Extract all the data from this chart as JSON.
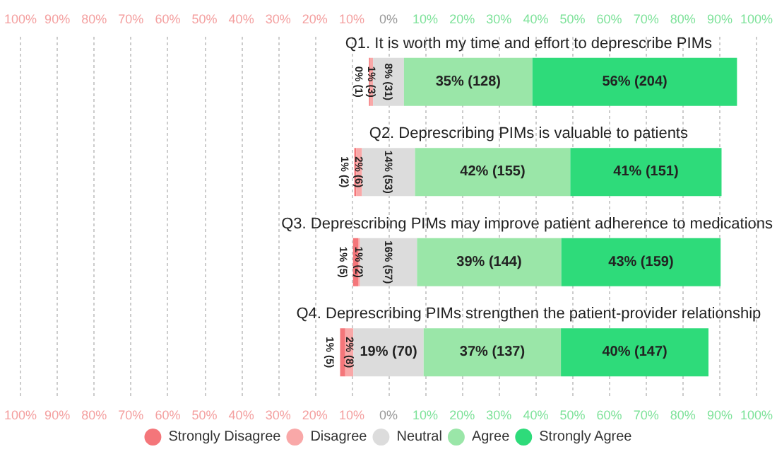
{
  "chart_data": {
    "type": "bar",
    "orientation": "horizontal",
    "categories": [
      "Q1. It is worth my time and effort to deprescribe PIMs",
      "Q2. Deprescribing PIMs is valuable to patients",
      "Q3. Deprescribing PIMs may improve patient adherence to medications",
      "Q4. Deprescribing PIMs strengthen the patient-provider relationship"
    ],
    "series": [
      {
        "name": "Strongly Disagree",
        "color": "#f4767a",
        "values": [
          0.3,
          0.5,
          1.4,
          1.4
        ],
        "base": [
          -5.3,
          -9.3,
          -9.65,
          -13.15
        ],
        "value_labels": [
          "0% (1)",
          "1% (2)",
          "1% (5)",
          "1% (5)"
        ]
      },
      {
        "name": "Disagree",
        "color": "#f9a8a8",
        "values": [
          0.8,
          1.6,
          0.5,
          2.2
        ],
        "base": [
          -5.0,
          -8.8,
          -8.25,
          -11.75
        ],
        "value_labels": [
          "1% (3)",
          "2% (6)",
          "1% (2)",
          "2% (8)"
        ]
      },
      {
        "name": "Neutral",
        "color": "#dcdcdc",
        "values": [
          8.4,
          14.4,
          15.5,
          19.1
        ],
        "base": [
          -4.2,
          -7.2,
          -7.75,
          -9.55
        ],
        "value_labels": [
          "8% (31)",
          "14% (53)",
          "16% (57)",
          "19% (70)"
        ]
      },
      {
        "name": "Agree",
        "color": "#9ae6a8",
        "values": [
          34.9,
          42.2,
          39.2,
          37.3
        ],
        "base": [
          4.2,
          7.2,
          7.75,
          9.55
        ],
        "value_labels": [
          "35% (128)",
          "42% (155)",
          "39% (144)",
          "37% (137)"
        ]
      },
      {
        "name": "Strongly Agree",
        "color": "#2edb7a",
        "values": [
          55.6,
          41.1,
          43.3,
          40.1
        ],
        "base": [
          39.1,
          49.4,
          46.95,
          46.85
        ],
        "value_labels": [
          "56% (204)",
          "41% (151)",
          "43% (159)",
          "40% (147)"
        ]
      }
    ],
    "xlim": [
      -100,
      100
    ],
    "xticks": [
      {
        "value": -100,
        "label": "100%"
      },
      {
        "value": -90,
        "label": "90%"
      },
      {
        "value": -80,
        "label": "80%"
      },
      {
        "value": -70,
        "label": "70%"
      },
      {
        "value": -60,
        "label": "60%"
      },
      {
        "value": -50,
        "label": "50%"
      },
      {
        "value": -40,
        "label": "40%"
      },
      {
        "value": -30,
        "label": "30%"
      },
      {
        "value": -20,
        "label": "20%"
      },
      {
        "value": -10,
        "label": "10%"
      },
      {
        "value": 0,
        "label": "0%"
      },
      {
        "value": 10,
        "label": "10%"
      },
      {
        "value": 20,
        "label": "20%"
      },
      {
        "value": 30,
        "label": "30%"
      },
      {
        "value": 40,
        "label": "40%"
      },
      {
        "value": 50,
        "label": "50%"
      },
      {
        "value": 60,
        "label": "60%"
      },
      {
        "value": 70,
        "label": "70%"
      },
      {
        "value": 80,
        "label": "80%"
      },
      {
        "value": 90,
        "label": "90%"
      },
      {
        "value": 100,
        "label": "100%"
      }
    ],
    "x2lim": [
      -100,
      100
    ],
    "x2ticks": [
      {
        "value": -100,
        "label": "100%"
      },
      {
        "value": -90,
        "label": "90%"
      },
      {
        "value": -80,
        "label": "80%"
      },
      {
        "value": -70,
        "label": "70%"
      },
      {
        "value": -60,
        "label": "60%"
      },
      {
        "value": -50,
        "label": "50%"
      },
      {
        "value": -40,
        "label": "40%"
      },
      {
        "value": -30,
        "label": "30%"
      },
      {
        "value": -20,
        "label": "20%"
      },
      {
        "value": -10,
        "label": "10%"
      },
      {
        "value": 0,
        "label": "0%"
      },
      {
        "value": 10,
        "label": "10%"
      },
      {
        "value": 20,
        "label": "20%"
      },
      {
        "value": 30,
        "label": "30%"
      },
      {
        "value": 40,
        "label": "40%"
      },
      {
        "value": 50,
        "label": "50%"
      },
      {
        "value": 60,
        "label": "60%"
      },
      {
        "value": 70,
        "label": "70%"
      },
      {
        "value": 80,
        "label": "80%"
      },
      {
        "value": 90,
        "label": "90%"
      },
      {
        "value": 100,
        "label": "100%"
      }
    ],
    "grid": "x",
    "legend": "bottom"
  }
}
